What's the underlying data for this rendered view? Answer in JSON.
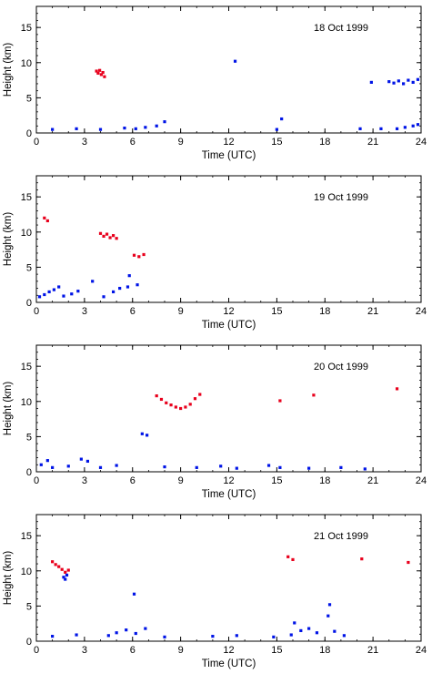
{
  "chart_data": [
    {
      "type": "scatter",
      "date": "18 Oct 1999",
      "xlabel": "Time (UTC)",
      "ylabel": "Height (km)",
      "xlim": [
        0,
        24
      ],
      "ylim": [
        0,
        18
      ],
      "xticks": [
        0,
        3,
        6,
        9,
        12,
        15,
        18,
        21,
        24
      ],
      "yticks": [
        0,
        5,
        10,
        15
      ],
      "colors": {
        "ice": "#e8001c",
        "water": "#0014e6",
        "frame": "#000000"
      },
      "series": [
        {
          "color": "ice",
          "points": [
            [
              3.75,
              8.8
            ],
            [
              3.85,
              8.5
            ],
            [
              3.95,
              8.9
            ],
            [
              4.05,
              8.3
            ],
            [
              4.15,
              8.6
            ],
            [
              4.25,
              8.0
            ]
          ]
        },
        {
          "color": "water",
          "points": [
            [
              1.0,
              0.5
            ],
            [
              2.5,
              0.6
            ],
            [
              4.0,
              0.5
            ],
            [
              5.5,
              0.7
            ],
            [
              6.2,
              0.6
            ],
            [
              6.8,
              0.8
            ],
            [
              7.5,
              1.0
            ],
            [
              8.0,
              1.6
            ],
            [
              12.4,
              10.2
            ],
            [
              15.0,
              0.5
            ],
            [
              15.3,
              2.0
            ],
            [
              20.2,
              0.6
            ],
            [
              20.9,
              7.2
            ],
            [
              21.5,
              0.6
            ],
            [
              22.0,
              7.3
            ],
            [
              22.3,
              7.1
            ],
            [
              22.6,
              7.4
            ],
            [
              22.9,
              7.0
            ],
            [
              23.2,
              7.5
            ],
            [
              23.5,
              7.2
            ],
            [
              23.8,
              7.6
            ],
            [
              22.5,
              0.6
            ],
            [
              23.0,
              0.8
            ],
            [
              23.5,
              1.0
            ],
            [
              23.8,
              1.2
            ]
          ]
        }
      ]
    },
    {
      "type": "scatter",
      "date": "19 Oct 1999",
      "xlabel": "Time (UTC)",
      "ylabel": "Height (km)",
      "xlim": [
        0,
        24
      ],
      "ylim": [
        0,
        18
      ],
      "xticks": [
        0,
        3,
        6,
        9,
        12,
        15,
        18,
        21,
        24
      ],
      "yticks": [
        0,
        5,
        10,
        15
      ],
      "colors": {
        "ice": "#e8001c",
        "water": "#0014e6",
        "frame": "#000000"
      },
      "series": [
        {
          "color": "ice",
          "points": [
            [
              0.5,
              12.0
            ],
            [
              0.7,
              11.6
            ],
            [
              4.0,
              9.8
            ],
            [
              4.2,
              9.4
            ],
            [
              4.4,
              9.7
            ],
            [
              4.6,
              9.2
            ],
            [
              4.8,
              9.5
            ],
            [
              5.0,
              9.1
            ],
            [
              6.1,
              6.7
            ],
            [
              6.4,
              6.5
            ],
            [
              6.7,
              6.8
            ]
          ]
        },
        {
          "color": "water",
          "points": [
            [
              0.2,
              0.8
            ],
            [
              0.5,
              1.1
            ],
            [
              0.8,
              1.5
            ],
            [
              1.1,
              1.8
            ],
            [
              1.4,
              2.2
            ],
            [
              1.7,
              0.9
            ],
            [
              2.2,
              1.2
            ],
            [
              2.6,
              1.6
            ],
            [
              3.5,
              3.0
            ],
            [
              4.2,
              0.8
            ],
            [
              4.8,
              1.5
            ],
            [
              5.2,
              2.0
            ],
            [
              5.7,
              2.2
            ],
            [
              5.8,
              3.8
            ],
            [
              6.3,
              2.5
            ]
          ]
        }
      ]
    },
    {
      "type": "scatter",
      "date": "20 Oct 1999",
      "xlabel": "Time (UTC)",
      "ylabel": "Height (km)",
      "xlim": [
        0,
        24
      ],
      "ylim": [
        0,
        18
      ],
      "xticks": [
        0,
        3,
        6,
        9,
        12,
        15,
        18,
        21,
        24
      ],
      "yticks": [
        0,
        5,
        10,
        15
      ],
      "colors": {
        "ice": "#e8001c",
        "water": "#0014e6",
        "frame": "#000000"
      },
      "series": [
        {
          "color": "ice",
          "points": [
            [
              7.5,
              10.8
            ],
            [
              7.8,
              10.3
            ],
            [
              8.1,
              9.8
            ],
            [
              8.4,
              9.5
            ],
            [
              8.7,
              9.2
            ],
            [
              9.0,
              9.0
            ],
            [
              9.3,
              9.2
            ],
            [
              9.6,
              9.6
            ],
            [
              9.9,
              10.4
            ],
            [
              10.2,
              11.0
            ],
            [
              15.2,
              10.1
            ],
            [
              17.3,
              10.9
            ],
            [
              22.5,
              11.8
            ]
          ]
        },
        {
          "color": "water",
          "points": [
            [
              0.3,
              1.0
            ],
            [
              0.7,
              1.6
            ],
            [
              1.0,
              0.6
            ],
            [
              2.0,
              0.8
            ],
            [
              2.8,
              1.8
            ],
            [
              3.2,
              1.5
            ],
            [
              4.0,
              0.6
            ],
            [
              5.0,
              0.9
            ],
            [
              6.6,
              5.4
            ],
            [
              6.9,
              5.2
            ],
            [
              8.0,
              0.7
            ],
            [
              10.0,
              0.6
            ],
            [
              11.5,
              0.8
            ],
            [
              12.5,
              0.5
            ],
            [
              14.5,
              0.9
            ],
            [
              15.2,
              0.6
            ],
            [
              17.0,
              0.5
            ],
            [
              19.0,
              0.6
            ],
            [
              20.5,
              0.4
            ]
          ]
        }
      ]
    },
    {
      "type": "scatter",
      "date": "21 Oct 1999",
      "xlabel": "Time (UTC)",
      "ylabel": "Height (km)",
      "xlim": [
        0,
        24
      ],
      "ylim": [
        0,
        18
      ],
      "xticks": [
        0,
        3,
        6,
        9,
        12,
        15,
        18,
        21,
        24
      ],
      "yticks": [
        0,
        5,
        10,
        15
      ],
      "colors": {
        "ice": "#e8001c",
        "water": "#0014e6",
        "frame": "#000000"
      },
      "series": [
        {
          "color": "ice",
          "points": [
            [
              1.0,
              11.3
            ],
            [
              1.2,
              10.9
            ],
            [
              1.4,
              10.6
            ],
            [
              1.6,
              10.2
            ],
            [
              1.8,
              9.8
            ],
            [
              2.0,
              10.1
            ],
            [
              15.7,
              12.0
            ],
            [
              16.0,
              11.6
            ],
            [
              20.3,
              11.7
            ],
            [
              23.2,
              11.2
            ]
          ]
        },
        {
          "color": "water",
          "points": [
            [
              1.7,
              9.1
            ],
            [
              1.8,
              8.8
            ],
            [
              1.9,
              9.4
            ],
            [
              6.1,
              6.7
            ],
            [
              1.0,
              0.7
            ],
            [
              2.5,
              0.9
            ],
            [
              4.5,
              0.8
            ],
            [
              5.0,
              1.2
            ],
            [
              5.6,
              1.6
            ],
            [
              6.2,
              1.1
            ],
            [
              6.8,
              1.8
            ],
            [
              8.0,
              0.6
            ],
            [
              11.0,
              0.7
            ],
            [
              12.5,
              0.8
            ],
            [
              14.8,
              0.6
            ],
            [
              15.9,
              0.9
            ],
            [
              16.1,
              2.6
            ],
            [
              16.5,
              1.5
            ],
            [
              17.0,
              1.8
            ],
            [
              17.5,
              1.2
            ],
            [
              18.2,
              3.6
            ],
            [
              18.3,
              5.2
            ],
            [
              18.6,
              1.4
            ],
            [
              19.2,
              0.8
            ]
          ]
        }
      ]
    }
  ]
}
